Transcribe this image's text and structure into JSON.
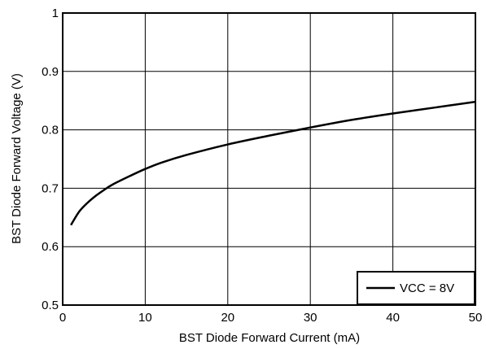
{
  "chart_data": {
    "type": "line",
    "title": "",
    "xlabel": "BST Diode Forward Current (mA)",
    "ylabel": "BST Diode Forward Voltage (V)",
    "xlim": [
      0,
      50
    ],
    "ylim": [
      0.5,
      1
    ],
    "xticks": [
      0,
      10,
      20,
      30,
      40,
      50
    ],
    "yticks": [
      0.5,
      0.6,
      0.7,
      0.8,
      0.9,
      1
    ],
    "xtick_labels": [
      "0",
      "10",
      "20",
      "30",
      "40",
      "50"
    ],
    "ytick_labels": [
      "0.5",
      "0.6",
      "0.7",
      "0.8",
      "0.9",
      "1"
    ],
    "grid": true,
    "legend_position": "bottom-right",
    "series": [
      {
        "name": "VCC = 8V",
        "color": "#000000",
        "x": [
          1,
          2,
          3,
          4,
          5,
          6,
          8,
          10,
          12,
          15,
          20,
          25,
          30,
          35,
          40,
          45,
          50
        ],
        "y": [
          0.637,
          0.66,
          0.675,
          0.687,
          0.697,
          0.706,
          0.72,
          0.733,
          0.744,
          0.757,
          0.775,
          0.79,
          0.804,
          0.817,
          0.828,
          0.838,
          0.848
        ]
      }
    ]
  }
}
